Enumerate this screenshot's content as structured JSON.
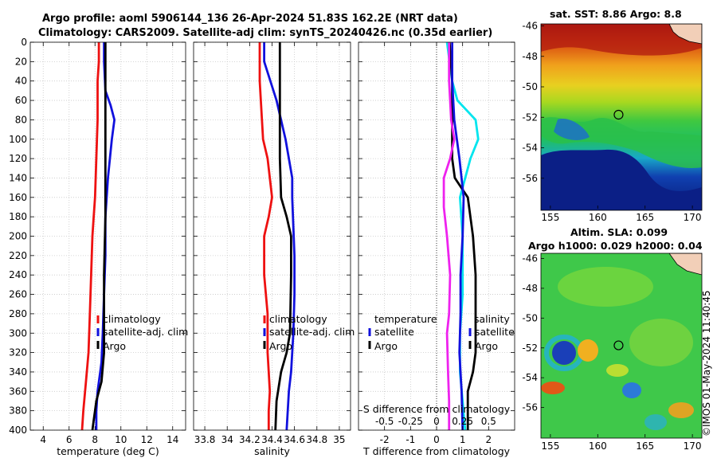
{
  "header": {
    "title_line1": "Argo profile: aoml 5906144_136 26-Apr-2024 51.83S 162.2E (NRT data)",
    "title_line2": "Climatology: CARS2009. Satellite-adj clim: synTS_20240426.nc (0.35d earlier)"
  },
  "colors": {
    "climatology": "#ee1111",
    "satellite": "#1111dd",
    "argo": "#000000",
    "temp_diff": "#00e5ee",
    "sal_diff": "#ee22ee",
    "grid": "#c8c8c8"
  },
  "chart_data": [
    {
      "type": "line",
      "name": "temperature-profile",
      "xlabel": "temperature (deg C)",
      "ylabel": "",
      "xlim": [
        3,
        15
      ],
      "ylim": [
        400,
        0
      ],
      "xticks": [
        4,
        6,
        8,
        10,
        12,
        14
      ],
      "xtick_labels": [
        "4",
        "6",
        "8",
        "10",
        "12",
        "14"
      ],
      "yticks": [
        0,
        20,
        40,
        60,
        80,
        100,
        120,
        140,
        160,
        180,
        200,
        220,
        240,
        260,
        280,
        300,
        320,
        340,
        360,
        380,
        400
      ],
      "ytick_labels": [
        "0",
        "20",
        "40",
        "60",
        "80",
        "100",
        "120",
        "140",
        "160",
        "180",
        "200",
        "220",
        "240",
        "260",
        "280",
        "300",
        "320",
        "340",
        "360",
        "380",
        "400"
      ],
      "grid": true,
      "legend": [
        "climatology",
        "satellite-adj. clim",
        "Argo"
      ],
      "series": [
        {
          "name": "climatology",
          "color": "#ee1111",
          "x": [
            8.3,
            8.3,
            8.2,
            8.2,
            8.1,
            8.0,
            7.9,
            7.8,
            7.7,
            7.6,
            7.5,
            7.3,
            7.1,
            7.0
          ],
          "y": [
            0,
            20,
            40,
            80,
            120,
            160,
            180,
            200,
            240,
            280,
            320,
            350,
            380,
            400
          ]
        },
        {
          "name": "satellite-adj. clim",
          "color": "#1111dd",
          "x": [
            8.7,
            8.7,
            8.8,
            9.2,
            9.5,
            9.3,
            9.0,
            8.8,
            8.8,
            8.7,
            8.6,
            8.5,
            8.4,
            8.2,
            8.1,
            8.1
          ],
          "y": [
            0,
            20,
            50,
            65,
            80,
            100,
            140,
            180,
            220,
            260,
            300,
            330,
            340,
            360,
            380,
            400
          ]
        },
        {
          "name": "Argo",
          "color": "#000000",
          "x": [
            8.8,
            8.8,
            8.8,
            8.8,
            8.7,
            8.7,
            8.7,
            8.6,
            8.5,
            8.3,
            8.1,
            8.0,
            7.9,
            7.8
          ],
          "y": [
            0,
            40,
            100,
            180,
            240,
            300,
            320,
            335,
            350,
            360,
            370,
            380,
            390,
            400
          ]
        }
      ]
    },
    {
      "type": "line",
      "name": "salinity-profile",
      "xlabel": "salinity",
      "xlim": [
        33.7,
        35.1
      ],
      "ylim": [
        400,
        0
      ],
      "xticks": [
        33.8,
        34,
        34.2,
        34.4,
        34.6,
        34.8,
        35
      ],
      "xtick_labels": [
        "33.8",
        "34",
        "34.2",
        "34.4",
        "34.6",
        "34.8",
        "35"
      ],
      "grid": true,
      "legend": [
        "climatology",
        "satellite-adj. clim",
        "Argo"
      ],
      "series": [
        {
          "name": "climatology",
          "color": "#ee1111",
          "x": [
            34.29,
            34.29,
            34.31,
            34.32,
            34.36,
            34.4,
            34.37,
            34.33,
            34.33,
            34.36,
            34.36,
            34.38,
            34.37,
            34.37
          ],
          "y": [
            0,
            40,
            80,
            100,
            120,
            160,
            180,
            200,
            240,
            280,
            320,
            360,
            380,
            400
          ]
        },
        {
          "name": "satellite-adj. clim",
          "color": "#1111dd",
          "x": [
            34.33,
            34.33,
            34.44,
            34.52,
            34.58,
            34.58,
            34.6,
            34.6,
            34.59,
            34.57,
            34.55,
            34.54,
            34.53
          ],
          "y": [
            0,
            20,
            60,
            100,
            140,
            160,
            220,
            260,
            300,
            340,
            360,
            380,
            400
          ]
        },
        {
          "name": "Argo",
          "color": "#000000",
          "x": [
            34.47,
            34.47,
            34.47,
            34.48,
            34.53,
            34.57,
            34.57,
            34.56,
            34.53,
            34.48,
            34.44,
            34.43
          ],
          "y": [
            0,
            60,
            120,
            160,
            180,
            200,
            240,
            300,
            320,
            340,
            370,
            400
          ]
        }
      ]
    },
    {
      "type": "line",
      "name": "difference-profile",
      "xlabel": "T difference from climatology",
      "xlabel_top": "S difference from climatology",
      "xlim": [
        -3,
        3
      ],
      "ylim": [
        400,
        0
      ],
      "xticks": [
        -2,
        -1,
        0,
        1,
        2
      ],
      "xtick_labels": [
        "-2",
        "-1",
        "0",
        "1",
        "2"
      ],
      "xticks_top": [
        -0.5,
        -0.25,
        0,
        0.25,
        0.5
      ],
      "xtick_top_labels": [
        "-0.5",
        "-0.25",
        "0",
        "0.25",
        "0.5"
      ],
      "grid": true,
      "legend_left_title": "temperature",
      "legend_right_title": "salinity",
      "legend": [
        "satellite",
        "Argo"
      ],
      "series": [
        {
          "name": "temperature satellite",
          "color": "#00e5ee",
          "x": [
            0.4,
            0.5,
            0.6,
            0.8,
            1.5,
            1.6,
            1.3,
            0.9,
            1.0,
            1.0,
            0.9,
            0.9,
            1.0,
            1.1
          ],
          "y": [
            0,
            20,
            40,
            60,
            80,
            100,
            120,
            160,
            200,
            260,
            300,
            340,
            370,
            400
          ]
        },
        {
          "name": "temperature Argo",
          "color": "#000000",
          "x": [
            0.5,
            0.6,
            0.6,
            0.6,
            0.6,
            0.7,
            1.2,
            1.4,
            1.5,
            1.5,
            1.5,
            1.5,
            1.4,
            1.2,
            1.2
          ],
          "y": [
            0,
            40,
            80,
            100,
            120,
            140,
            160,
            200,
            240,
            280,
            300,
            320,
            340,
            360,
            400
          ]
        },
        {
          "name": "salinity satellite",
          "color": "#1111dd",
          "x": [
            0.15,
            0.15,
            0.17,
            0.22,
            0.26,
            0.25,
            0.23,
            0.23,
            0.22,
            0.24,
            0.25
          ],
          "y": [
            0,
            40,
            80,
            120,
            160,
            200,
            240,
            280,
            320,
            360,
            400
          ]
        },
        {
          "name": "salinity Argo",
          "color": "#ee22ee",
          "x": [
            0.12,
            0.12,
            0.14,
            0.17,
            0.13,
            0.07,
            0.07,
            0.1,
            0.13,
            0.12,
            0.1,
            0.11,
            0.12,
            0.12
          ],
          "y": [
            0,
            40,
            80,
            100,
            120,
            140,
            170,
            200,
            240,
            280,
            300,
            340,
            370,
            400
          ]
        }
      ]
    },
    {
      "type": "heatmap",
      "name": "sst-map",
      "title": "sat. SST: 8.86 Argo: 8.8",
      "xlim": [
        154,
        171
      ],
      "ylim": [
        -58,
        -46
      ],
      "xticks": [
        155,
        160,
        165,
        170
      ],
      "xtick_labels": [
        "155",
        "160",
        "165",
        "170"
      ],
      "yticks": [
        -46,
        -48,
        -50,
        -52,
        -54,
        -56
      ],
      "ytick_labels": [
        "-46",
        "-48",
        "-50",
        "-52",
        "-54",
        "-56"
      ],
      "marker": {
        "lon": 162.2,
        "lat": -51.83
      }
    },
    {
      "type": "heatmap",
      "name": "sla-map",
      "title_line1": "Altim. SLA: 0.099",
      "title_line2": "Argo h1000: 0.029 h2000: 0.04",
      "xlim": [
        154,
        171
      ],
      "ylim": [
        -58,
        -46
      ],
      "xticks": [
        155,
        160,
        165,
        170
      ],
      "xtick_labels": [
        "155",
        "160",
        "165",
        "170"
      ],
      "yticks": [
        -46,
        -48,
        -50,
        -52,
        -54,
        -56
      ],
      "ytick_labels": [
        "-46",
        "-48",
        "-50",
        "-52",
        "-54",
        "-56"
      ],
      "marker": {
        "lon": 162.2,
        "lat": -51.83
      }
    }
  ],
  "footer": {
    "stamp": "©IMOS 01-May-2024 11:40:45"
  }
}
